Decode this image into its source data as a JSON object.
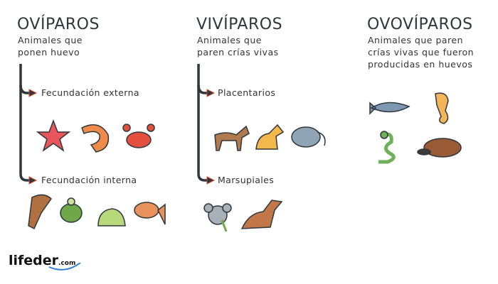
{
  "columns": [
    {
      "title": "OVÍPAROS",
      "subtitle": [
        "Animales que",
        "ponen huevo"
      ],
      "branches": [
        {
          "label": "Fecundación externa",
          "animals": [
            "starfish",
            "shrimp",
            "crab"
          ]
        },
        {
          "label": "Fecundación interna",
          "animals": [
            "eagle",
            "turtle",
            "frog",
            "fish"
          ]
        }
      ]
    },
    {
      "title": "VIVÍPAROS",
      "subtitle": [
        "Animales que",
        "paren crías vivas"
      ],
      "branches": [
        {
          "label": "Placentarios",
          "animals": [
            "horse",
            "dog",
            "elephant"
          ]
        },
        {
          "label": "Marsupiales",
          "animals": [
            "koala",
            "kangaroo"
          ]
        }
      ]
    },
    {
      "title": "OVOVÍPAROS",
      "subtitle": [
        "Animales que paren",
        "crías vivas que fueron",
        "producidas en huevos"
      ],
      "animals": [
        "shark",
        "seahorse",
        "snake",
        "platypus"
      ]
    }
  ],
  "logo": {
    "text": "lifeder",
    "suffix": ".com"
  },
  "colors": {
    "line": "#2f373c",
    "arrow_outline": "#d9462b",
    "text": "#333b40",
    "logo_swoosh": "#2b7fd4"
  }
}
